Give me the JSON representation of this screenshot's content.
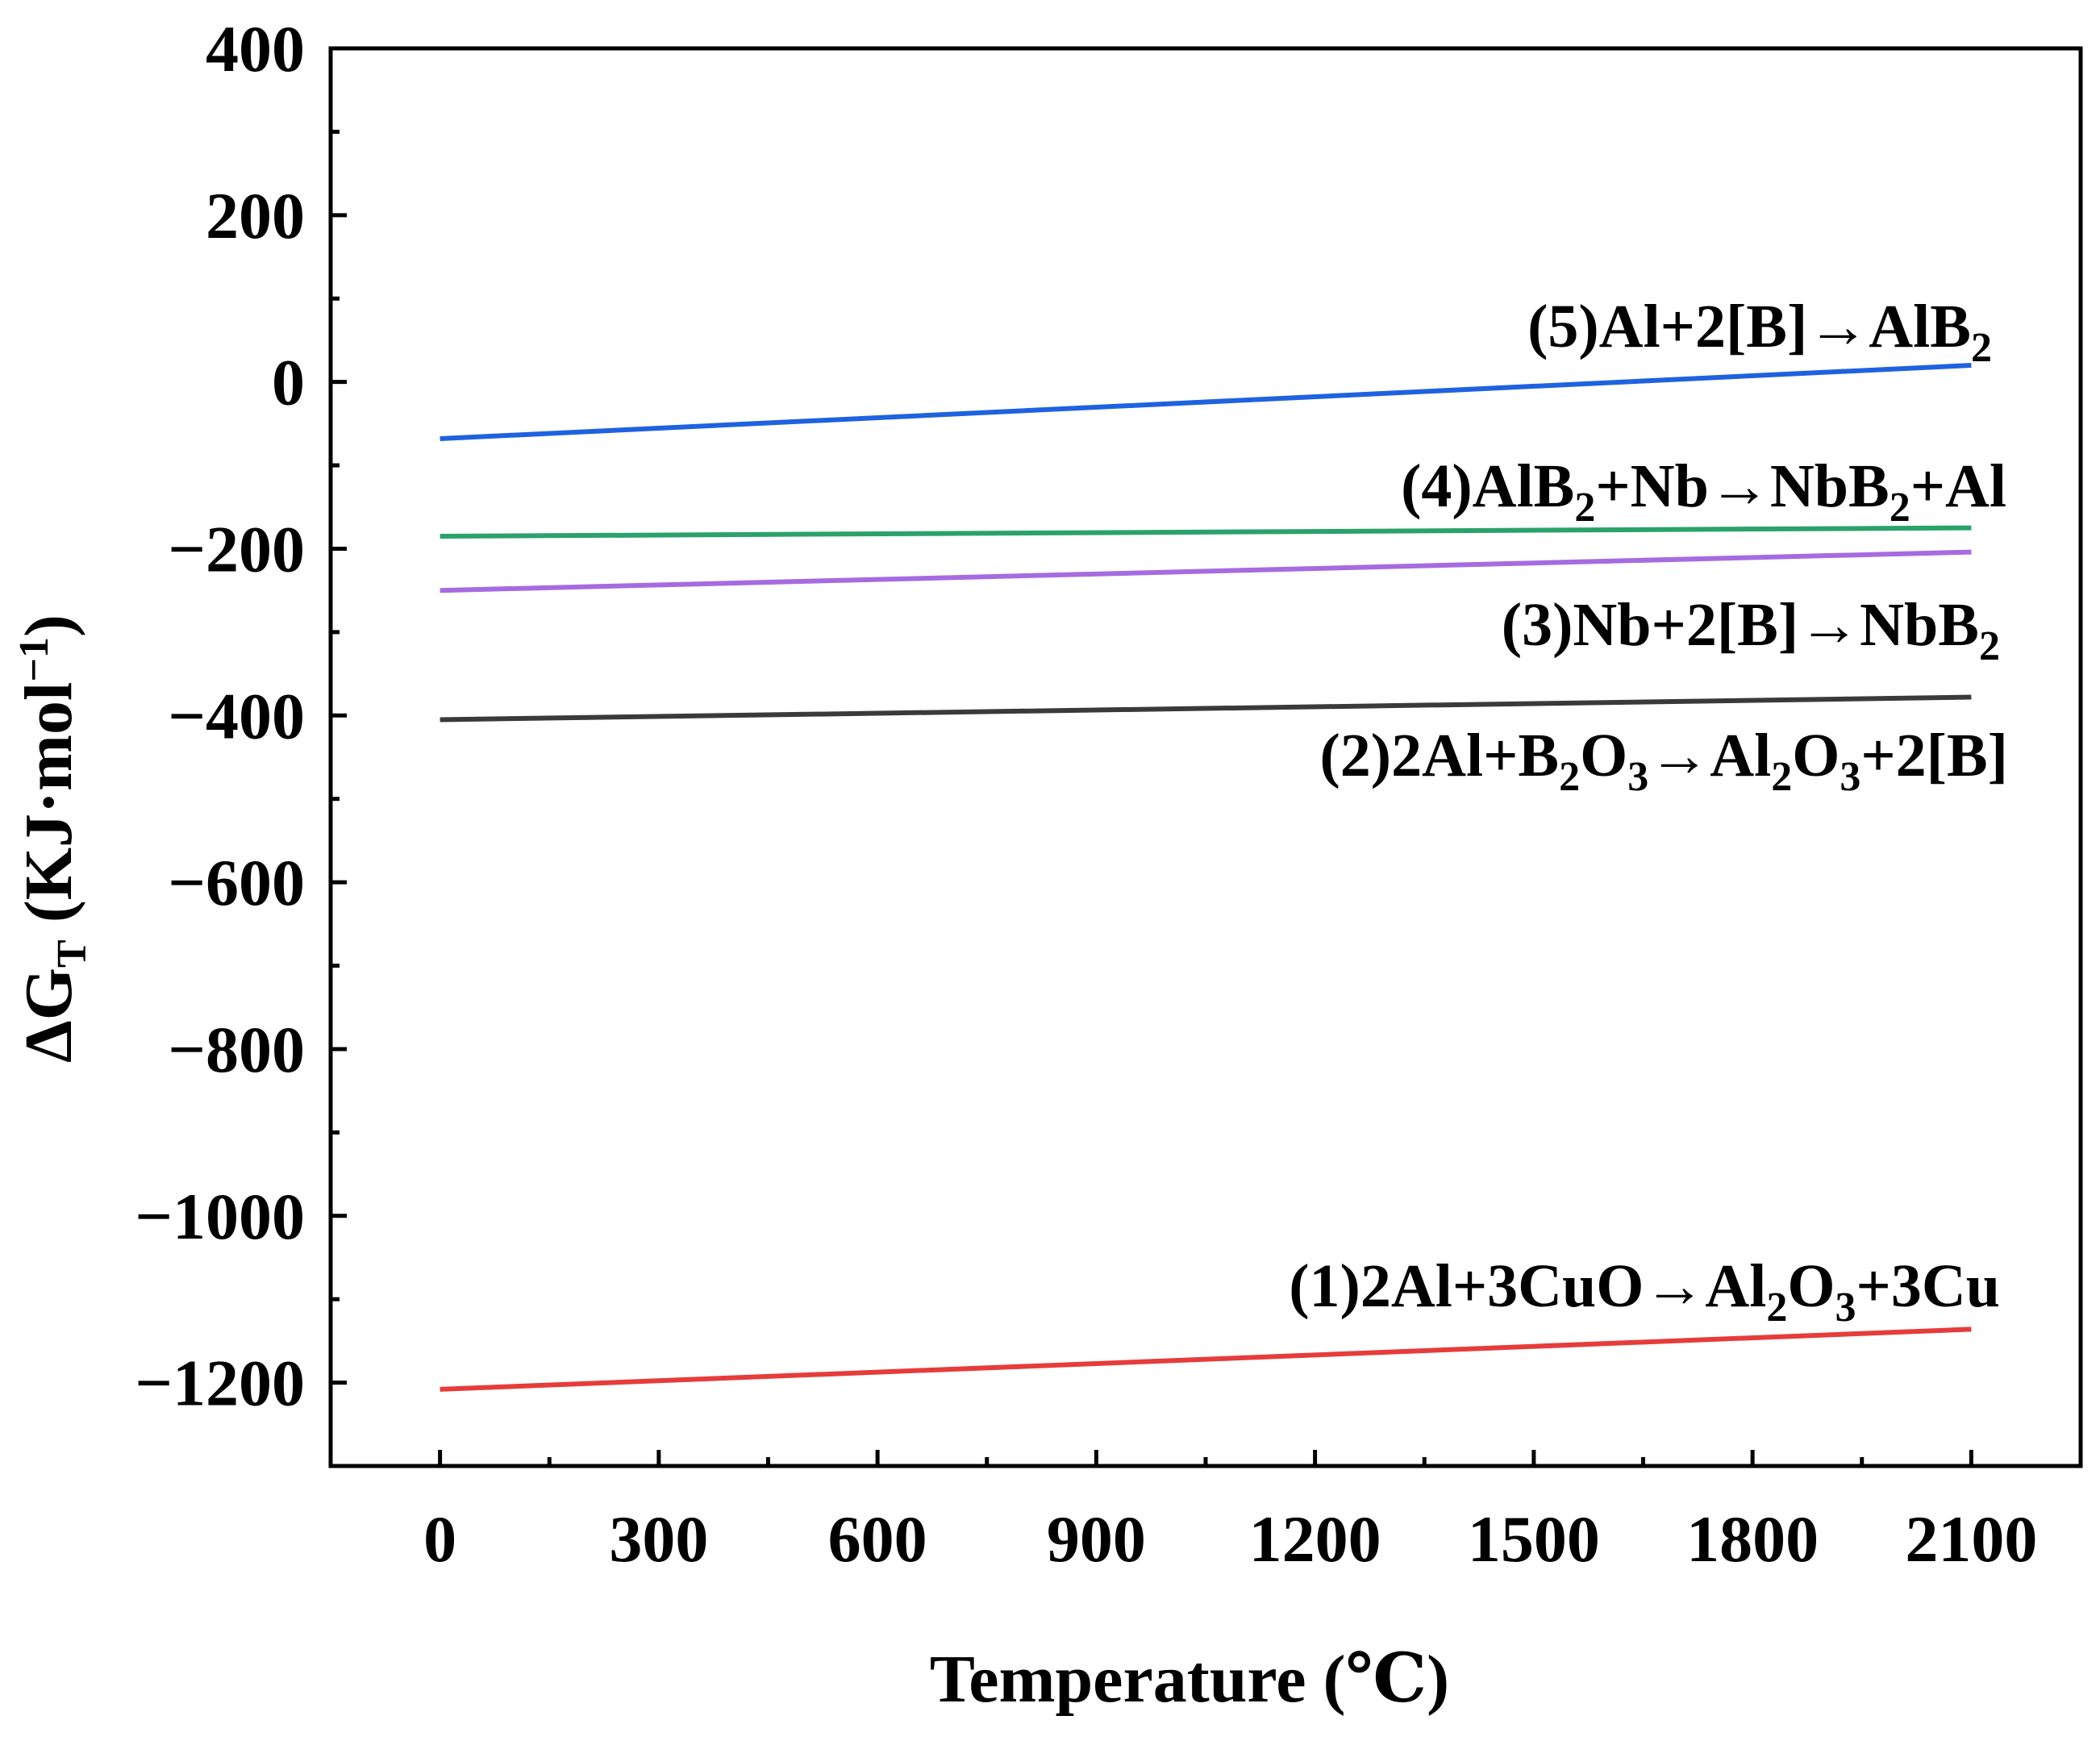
{
  "chart_data": {
    "type": "line",
    "title": "",
    "xlabel": "Temperature (℃)",
    "ylabel": {
      "parts": [
        {
          "text": "ΔG",
          "style": "normal"
        },
        {
          "text": "T",
          "style": "sub"
        },
        {
          "text": " (KJ·mol",
          "style": "normal"
        },
        {
          "text": "−1",
          "style": "sup"
        },
        {
          "text": ")",
          "style": "normal"
        }
      ]
    },
    "xlim": [
      -150,
      2250
    ],
    "ylim": [
      -1300,
      400
    ],
    "xticks": [
      0,
      300,
      600,
      900,
      1200,
      1500,
      1800,
      2100
    ],
    "xtick_labels": [
      "0",
      "300",
      "600",
      "900",
      "1200",
      "1500",
      "1800",
      "2100"
    ],
    "yticks": [
      400,
      200,
      0,
      -200,
      -400,
      -600,
      -800,
      -1000,
      -1200
    ],
    "ytick_labels": [
      "400",
      "200",
      "0",
      "−200",
      "−400",
      "−600",
      "−800",
      "−1000",
      "−1200"
    ],
    "grid": false,
    "series": [
      {
        "name": "(5)",
        "color": "#1f62e0",
        "x": [
          0,
          2100
        ],
        "y": [
          -68,
          20
        ],
        "label_parts": [
          {
            "text": "(5)Al+2[B]→AlB",
            "style": "normal"
          },
          {
            "text": "2",
            "style": "sub"
          }
        ]
      },
      {
        "name": "(4)",
        "color": "#2aa26a",
        "x": [
          0,
          2100
        ],
        "y": [
          -185,
          -175
        ],
        "label_parts": [
          {
            "text": "(4)AlB",
            "style": "normal"
          },
          {
            "text": "2",
            "style": "sub"
          },
          {
            "text": "+Nb→NbB",
            "style": "normal"
          },
          {
            "text": "2",
            "style": "sub"
          },
          {
            "text": "+Al",
            "style": "normal"
          }
        ]
      },
      {
        "name": "(3)",
        "color": "#a66be0",
        "x": [
          0,
          2100
        ],
        "y": [
          -250,
          -204
        ],
        "label_parts": [
          {
            "text": "(3)Nb+2[B]→NbB",
            "style": "normal"
          },
          {
            "text": "2",
            "style": "sub"
          }
        ]
      },
      {
        "name": "(2)",
        "color": "#3a3a3a",
        "x": [
          0,
          2100
        ],
        "y": [
          -405,
          -378
        ],
        "label_parts": [
          {
            "text": "(2)2Al+B",
            "style": "normal"
          },
          {
            "text": "2",
            "style": "sub"
          },
          {
            "text": "O",
            "style": "normal"
          },
          {
            "text": "3",
            "style": "sub"
          },
          {
            "text": "→Al",
            "style": "normal"
          },
          {
            "text": "2",
            "style": "sub"
          },
          {
            "text": "O",
            "style": "normal"
          },
          {
            "text": "3",
            "style": "sub"
          },
          {
            "text": "+2[B]",
            "style": "normal"
          }
        ]
      },
      {
        "name": "(1)",
        "color": "#e63c3c",
        "x": [
          0,
          2100
        ],
        "y": [
          -1208,
          -1136
        ],
        "label_parts": [
          {
            "text": "(1)2Al+3CuO→Al",
            "style": "normal"
          },
          {
            "text": "2",
            "style": "sub"
          },
          {
            "text": "O",
            "style": "normal"
          },
          {
            "text": "3",
            "style": "sub"
          },
          {
            "text": "+3Cu",
            "style": "normal"
          }
        ]
      }
    ]
  }
}
